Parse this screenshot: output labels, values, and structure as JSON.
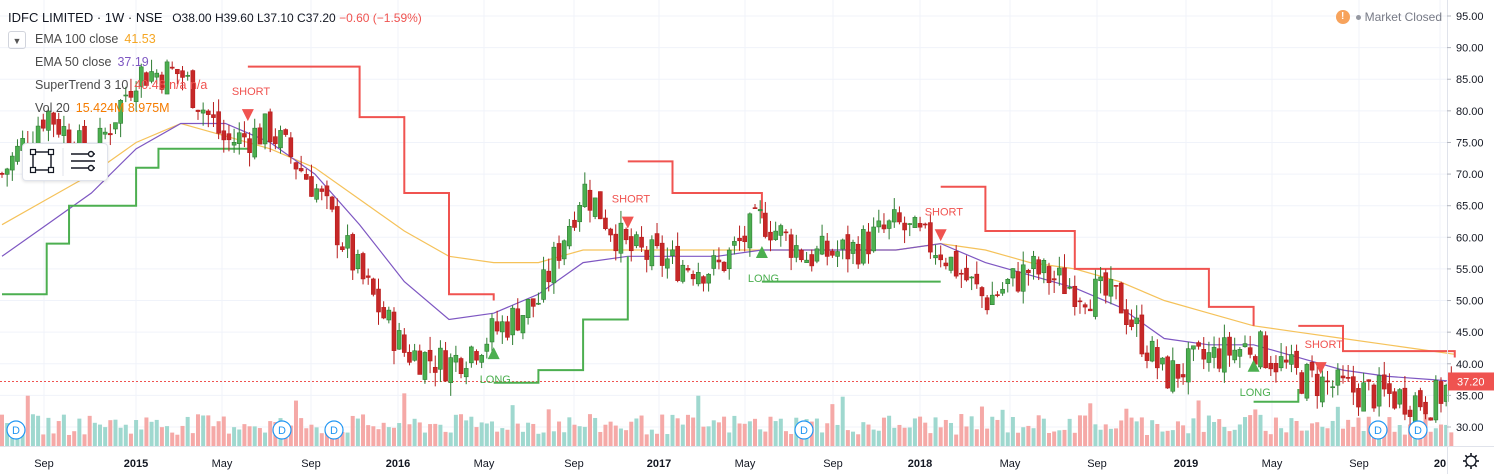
{
  "header": {
    "symbol": "IDFC LIMITED",
    "interval": "1W",
    "exchange": "NSE",
    "open": "O38.00",
    "high": "H39.60",
    "low": "L37.10",
    "close": "C37.20",
    "change": "−0.60 (−1.59%)",
    "status": "Market Closed",
    "status_icon": "info-icon"
  },
  "legend": [
    {
      "name": "EMA 100 close",
      "value": "41.53",
      "color": "#f5a623"
    },
    {
      "name": "EMA 50 close",
      "value": "37.19",
      "color": "#7e57c2"
    },
    {
      "name": "SuperTrend 3 10",
      "value": "40.48  n/a  n/a",
      "color": "#f05350"
    },
    {
      "name": "Vol 20",
      "value": "15.424M  8.975M",
      "color": "#f57c00"
    }
  ],
  "toolbar": {
    "icons": [
      "rectangle-select-icon",
      "settings-list-icon"
    ]
  },
  "colors": {
    "up": "#26a69a",
    "down": "#ef5350",
    "up_body": "#4caf50",
    "down_body": "#c62828",
    "ema100": "#f5c25a",
    "ema50": "#7e57c2",
    "st_up": "#4caf50",
    "st_down": "#f05350",
    "price_tag": "#ef5350",
    "grid": "#f0f3fa"
  },
  "chart_data": {
    "type": "candlestick",
    "title": "IDFC LIMITED · 1W · NSE",
    "ylim": [
      28.5,
      97.5
    ],
    "y_axis_side": "right",
    "y_ticks": [
      "30.00",
      "35.00",
      "40.00",
      "45.00",
      "50.00",
      "55.00",
      "60.00",
      "65.00",
      "70.00",
      "75.00",
      "80.00",
      "85.00",
      "90.00",
      "95.00"
    ],
    "x_ticks": [
      "Sep",
      "2015",
      "May",
      "Sep",
      "2016",
      "May",
      "Sep",
      "2017",
      "May",
      "Sep",
      "2018",
      "May",
      "Sep",
      "2019",
      "May",
      "Sep",
      "20"
    ],
    "grid": true,
    "last_price": "37.20",
    "price_series": {
      "name": "IDFC LIMITED",
      "x": [
        "2014-07",
        "2014-09",
        "2014-11",
        "2015-01",
        "2015-03",
        "2015-05",
        "2015-07",
        "2015-09",
        "2015-11",
        "2016-01",
        "2016-03",
        "2016-05",
        "2016-07",
        "2016-09",
        "2016-11",
        "2017-01",
        "2017-03",
        "2017-05",
        "2017-07",
        "2017-09",
        "2017-11",
        "2018-01",
        "2018-03",
        "2018-05",
        "2018-07",
        "2018-09",
        "2018-11",
        "2019-01",
        "2019-03",
        "2019-05",
        "2019-07",
        "2019-09",
        "2019-11",
        "2019-12"
      ],
      "close": [
        70,
        80,
        72,
        86,
        86,
        75,
        77,
        68,
        54,
        42,
        40,
        45,
        50,
        68,
        58,
        56,
        55,
        63,
        57,
        58,
        62,
        58,
        50,
        55,
        52,
        50,
        38,
        41,
        43,
        38,
        36,
        35,
        34,
        37.2
      ]
    },
    "ema100": [
      62,
      66,
      70,
      75,
      78,
      76,
      74,
      71,
      66,
      61,
      57,
      56,
      56,
      58,
      58,
      58,
      58,
      58,
      58,
      58,
      58,
      59,
      58,
      56,
      55,
      53,
      50,
      48,
      46,
      45,
      44,
      43,
      42,
      41.5
    ],
    "ema50": [
      57,
      62,
      67,
      74,
      78,
      78,
      75,
      70,
      62,
      53,
      47,
      48,
      51,
      56,
      57,
      57,
      57,
      58,
      58,
      58,
      58,
      59,
      56,
      54,
      52,
      49,
      44,
      43,
      43,
      41,
      39,
      38,
      37.5,
      37.2
    ],
    "supertrend": {
      "long_x": [
        "2014-07",
        "2014-09",
        "2014-10",
        "2015-01",
        "2015-02",
        "2015-06"
      ],
      "long_y": [
        51,
        59,
        65,
        71,
        74,
        74
      ],
      "short_x": [
        "2015-06",
        "2015-08",
        "2015-11",
        "2016-01",
        "2016-03",
        "2016-05"
      ],
      "short_y": [
        87,
        87,
        79,
        67,
        51,
        50
      ],
      "long2_x": [
        "2016-05",
        "2016-07",
        "2016-09",
        "2016-11"
      ],
      "long2_y": [
        37,
        39,
        47,
        57
      ],
      "short2_x": [
        "2016-11",
        "2017-01",
        "2017-05"
      ],
      "short2_y": [
        72,
        67,
        63
      ],
      "long3_x": [
        "2017-05",
        "2018-01"
      ],
      "long3_y": [
        53,
        53
      ],
      "short3_x": [
        "2018-01",
        "2018-03",
        "2018-07",
        "2018-09",
        "2019-01",
        "2019-03"
      ],
      "short3_y": [
        68,
        61,
        55,
        55,
        49,
        46
      ],
      "long4_x": [
        "2019-03",
        "2019-05"
      ],
      "long4_y": [
        34,
        36
      ],
      "short4_x": [
        "2019-05",
        "2019-07",
        "2019-12"
      ],
      "short4_y": [
        46,
        42,
        41
      ]
    },
    "signals": [
      {
        "label": "SHORT",
        "x": "2015-06",
        "price": 79
      },
      {
        "label": "LONG",
        "x": "2016-05",
        "price": 42
      },
      {
        "label": "SHORT",
        "x": "2016-11",
        "price": 62
      },
      {
        "label": "LONG",
        "x": "2017-05",
        "price": 58
      },
      {
        "label": "SHORT",
        "x": "2018-01",
        "price": 60
      },
      {
        "label": "LONG",
        "x": "2019-03",
        "price": 40
      },
      {
        "label": "SHORT",
        "x": "2019-06",
        "price": 39
      }
    ],
    "dividend_markers": [
      "D",
      "D",
      "D",
      "D",
      "D",
      "D",
      "D"
    ],
    "volume": {
      "name": "Vol 20",
      "unit": "M",
      "last": "15.424M",
      "ma": "8.975M"
    }
  }
}
